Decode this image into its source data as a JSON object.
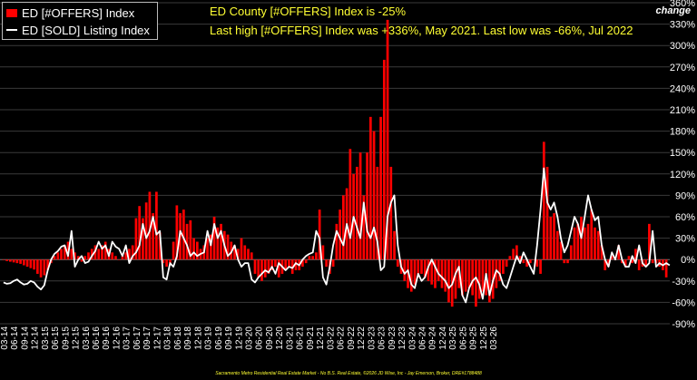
{
  "legend": {
    "bar_label": "ED [#OFFERS] Index",
    "line_label": "ED [SOLD] Listing Index"
  },
  "annotations": {
    "line1": "ED County [#OFFERS] Index is -25%",
    "line2": "Last high [#OFFERS] Index was +336%, May 2021. Last low was -66%, Jul 2022"
  },
  "corner_label": "change",
  "footer": "Sacramento Metro Residential Real Estate Market - No B.S. Real Estate, ©2026 JD Wise, Inc - Jay Emerson, Broker, DRE#1788488",
  "colors": {
    "bars": "#ff0000",
    "line": "#ffffff",
    "background": "#000000",
    "grid": "#444444",
    "annotation": "#ffff33"
  },
  "chart_data": {
    "type": "bar",
    "title": "",
    "xlabel": "",
    "ylabel": "change",
    "ylim": [
      -90,
      360
    ],
    "y_ticks": [
      "-90%",
      "-60%",
      "-30%",
      "0%",
      "30%",
      "60%",
      "90%",
      "120%",
      "150%",
      "180%",
      "210%",
      "240%",
      "270%",
      "300%",
      "330%",
      "360%"
    ],
    "x_tick_labels": [
      "03-14",
      "06-14",
      "09-14",
      "12-14",
      "03-15",
      "06-15",
      "09-15",
      "12-15",
      "03-16",
      "06-16",
      "09-16",
      "12-16",
      "03-17",
      "06-17",
      "09-17",
      "12-17",
      "03-18",
      "06-18",
      "09-18",
      "12-18",
      "03-19",
      "06-19",
      "09-19",
      "12-19",
      "03-20",
      "06-20",
      "09-20",
      "12-20",
      "03-21",
      "06-21",
      "09-21",
      "12-21",
      "03-22",
      "06-22",
      "09-22",
      "12-22",
      "03-23",
      "06-23",
      "09-23",
      "12-23",
      "03-24",
      "06-24",
      "09-24",
      "12-24",
      "03-25",
      "06-25",
      "09-25",
      "12-25",
      "03-26"
    ],
    "grid": true,
    "legend_position": "top-left",
    "start_month": "2014-03",
    "series": [
      {
        "name": "ED [#OFFERS] Index",
        "kind": "bar",
        "values": [
          0,
          -2,
          -3,
          -4,
          -5,
          -6,
          -8,
          -10,
          -12,
          -14,
          -20,
          -25,
          -22,
          -15,
          -5,
          5,
          10,
          15,
          20,
          25,
          15,
          10,
          5,
          -3,
          5,
          10,
          15,
          20,
          15,
          20,
          25,
          15,
          10,
          5,
          0,
          5,
          10,
          15,
          20,
          58,
          75,
          58,
          80,
          95,
          65,
          95,
          38,
          -5,
          -10,
          -5,
          25,
          76,
          65,
          70,
          50,
          55,
          30,
          25,
          15,
          20,
          30,
          35,
          60,
          45,
          50,
          40,
          35,
          25,
          20,
          15,
          30,
          20,
          15,
          10,
          -20,
          -25,
          -30,
          -25,
          -20,
          -15,
          -10,
          -25,
          -20,
          -15,
          -10,
          -20,
          -15,
          -15,
          -10,
          -5,
          5,
          5,
          10,
          70,
          20,
          -10,
          -20,
          -10,
          50,
          70,
          90,
          100,
          155,
          120,
          130,
          150,
          90,
          150,
          200,
          180,
          130,
          200,
          280,
          336,
          130,
          40,
          -10,
          -20,
          -30,
          -40,
          -45,
          -35,
          -25,
          -20,
          -25,
          -30,
          -35,
          -40,
          -30,
          -40,
          -45,
          -60,
          -66,
          -55,
          -40,
          -50,
          -45,
          -40,
          -50,
          -66,
          -55,
          -45,
          -50,
          -60,
          -55,
          -40,
          -30,
          -20,
          -10,
          5,
          15,
          20,
          5,
          -5,
          -10,
          -5,
          0,
          -10,
          -20,
          165,
          130,
          60,
          65,
          40,
          25,
          -5,
          -5,
          20,
          45,
          50,
          60,
          45,
          50,
          70,
          45,
          40,
          20,
          -15,
          -10,
          5,
          0,
          20,
          -5,
          -10,
          5,
          -5,
          15,
          -15,
          -10,
          -10,
          50,
          -5,
          -5,
          -10,
          -15,
          -25
        ]
      },
      {
        "name": "ED [SOLD] Listing Index",
        "kind": "line",
        "values": [
          -32,
          -34,
          -33,
          -30,
          -28,
          -32,
          -35,
          -34,
          -30,
          -32,
          -38,
          -42,
          -36,
          -15,
          0,
          8,
          12,
          18,
          20,
          5,
          40,
          -10,
          0,
          5,
          -5,
          -3,
          5,
          12,
          25,
          15,
          20,
          5,
          25,
          18,
          15,
          5,
          20,
          -5,
          5,
          10,
          20,
          50,
          30,
          40,
          60,
          35,
          40,
          -25,
          -28,
          -5,
          -10,
          5,
          40,
          30,
          20,
          5,
          10,
          5,
          8,
          10,
          40,
          20,
          50,
          30,
          40,
          20,
          5,
          10,
          20,
          0,
          -10,
          -5,
          -5,
          -28,
          -32,
          -25,
          -20,
          -15,
          -18,
          -10,
          -20,
          -5,
          -10,
          -15,
          -10,
          -12,
          -5,
          -8,
          0,
          5,
          8,
          10,
          40,
          30,
          -25,
          -35,
          -10,
          20,
          40,
          30,
          20,
          50,
          30,
          60,
          45,
          30,
          80,
          40,
          30,
          45,
          25,
          -15,
          -10,
          60,
          80,
          90,
          20,
          -10,
          -20,
          -15,
          -35,
          -40,
          -20,
          -30,
          -25,
          -10,
          0,
          -10,
          -20,
          -25,
          -30,
          -40,
          -35,
          -20,
          -10,
          -50,
          -60,
          -40,
          -30,
          -25,
          -35,
          -55,
          -20,
          -50,
          -30,
          -15,
          -20,
          -35,
          -40,
          -25,
          -10,
          5,
          -5,
          10,
          0,
          -10,
          -20,
          20,
          70,
          128,
          80,
          70,
          80,
          60,
          30,
          10,
          20,
          40,
          60,
          50,
          30,
          60,
          90,
          70,
          55,
          60,
          20,
          0,
          -10,
          10,
          0,
          20,
          0,
          -10,
          -10,
          5,
          -5,
          20,
          -5,
          -10,
          -5,
          40,
          -10,
          -5,
          -8,
          -5,
          -8
        ]
      }
    ]
  }
}
